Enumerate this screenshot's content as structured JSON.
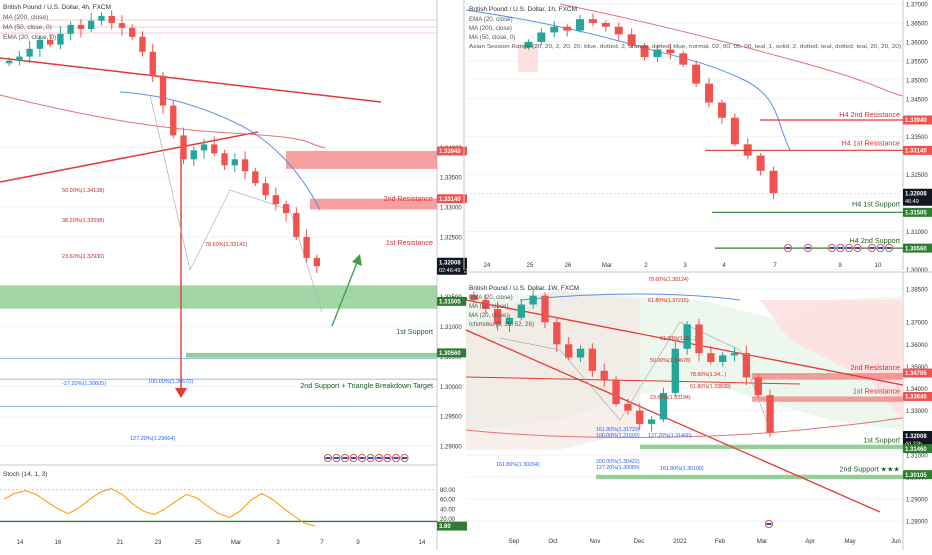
{
  "colors": {
    "bull": "#26a69a",
    "bear": "#ef5350",
    "resistance_line": "#e53935",
    "support_line": "#2e7d32",
    "support_zone": "#66bb6a",
    "resistance_zone": "#ef5350",
    "ma200": "#e57373",
    "ma50": "#5c8fe6",
    "ema20": "#ef6c00",
    "stoch": "#ff9800",
    "axis_text": "#333333",
    "price_tag": "#131722"
  },
  "panels": [
    {
      "id": "h4",
      "header": [
        "British Pound / U.S. Dollar, 4h, FXCM",
        "MA (200, close)",
        "MA (50, close, 0)",
        "EMA (20, close, 0)"
      ],
      "price_labels": [
        {
          "value": "1.33940",
          "style": "red"
        },
        {
          "value": "1.33140",
          "style": "red"
        },
        {
          "value": "1.32008",
          "style": "dark",
          "sub": "02:46:49"
        },
        {
          "value": "1.31505",
          "style": "green"
        },
        {
          "value": "1.30560",
          "style": "green"
        }
      ],
      "axis_ticks": [
        "1.34000",
        "1.33500",
        "1.33000",
        "1.32500",
        "1.31500",
        "1.31000",
        "1.30500",
        "1.30000",
        "1.29500",
        "1.29000"
      ],
      "time_ticks": [
        "14",
        "16",
        "21",
        "23",
        "25",
        "Mar",
        "3",
        "7",
        "9",
        "14"
      ],
      "zone_labels": [
        "2nd Resistance",
        "1st Resistance",
        "1st Support",
        "2nd Support + Triangle Breakdown Target"
      ],
      "fib_labels": [
        "50.00%(1.34138)",
        "38.20%(1.33598)",
        "78.60%(1.33141)",
        "23.60%(1.32930)",
        "-27.20%(1.30605)",
        "100.00%(1.30670)",
        "127.20%(1.29664)"
      ],
      "stoch": {
        "header": "Stoch (14, 1, 3)",
        "ticks": [
          "80.00",
          "60.00",
          "40.00",
          "20.00"
        ],
        "value": "3.80"
      }
    },
    {
      "id": "h1",
      "header": [
        "British Pound / U.S. Dollar, 1h, FXCM",
        "EMA (20, close)",
        "MA (200, close)",
        "MA (50, close, 0)",
        "Asian Session Range (20, 20, 2, 20, 20, blue, dotted, 2, orange, dotted, blue, normal, 02, 00, 05, 00, teal, 1, solid, 2, dotted, teal, dotted, teal, 20, 20, 20)"
      ],
      "price_labels": [
        {
          "value": "1.33940",
          "style": "red"
        },
        {
          "value": "1.33140",
          "style": "red"
        },
        {
          "value": "1.32008",
          "style": "dark",
          "sub": "46:49"
        },
        {
          "value": "1.31505",
          "style": "green"
        },
        {
          "value": "1.30560",
          "style": "green"
        }
      ],
      "axis_ticks": [
        "1.37000",
        "1.36500",
        "1.36000",
        "1.35500",
        "1.35000",
        "1.34500",
        "1.33500",
        "1.32500",
        "1.31000",
        "1.30000"
      ],
      "time_ticks": [
        "24",
        "25",
        "26",
        "Mar",
        "2",
        "3",
        "4",
        "7",
        "9",
        "10"
      ],
      "zone_labels": [
        "H4 2nd Resistance",
        "H4 1st Resistance",
        "H4 1st Support",
        "H4 2nd Support"
      ]
    },
    {
      "id": "w1",
      "header": [
        "British Pound / U.S. Dollar, 1W, FXCM",
        "EMA (20, close)",
        "MA (50, close)",
        "MA (20, close)",
        "Ichimoku (9, 26, 52, 26)"
      ],
      "price_labels": [
        {
          "value": "1.34705",
          "style": "red"
        },
        {
          "value": "1.33640",
          "style": "red"
        },
        {
          "value": "1.32008",
          "style": "dark",
          "sub": "4d 23h"
        },
        {
          "value": "1.31460",
          "style": "green"
        },
        {
          "value": "1.30105",
          "style": "green"
        }
      ],
      "axis_ticks": [
        "1.38500",
        "1.37000",
        "1.36000",
        "1.35000",
        "1.34000",
        "1.33000",
        "1.31000",
        "1.30000",
        "1.29000",
        "1.28000"
      ],
      "time_ticks": [
        "Sep",
        "Oct",
        "Nov",
        "Dec",
        "2022",
        "Feb",
        "Mar",
        "Apr",
        "May",
        "Jun"
      ],
      "zone_labels": [
        "2nd Resistance",
        "1st Resistance",
        "1st Support",
        "2nd Support ★★★"
      ],
      "fib_labels": [
        "78.60%(1.38124)",
        "61.80%(1.37215)",
        "61.80%(1.35...)",
        "50.00%(1.34678)",
        "78.60%(1.34...)",
        "61.80%(1.33839)",
        "23.60%(1.33194)",
        "161.80%(1.31729)",
        "100.00%(1.31600)",
        "127.20%(1.31400)",
        "200.00%(1.30422)",
        "127.20%(1.30089)",
        "161.80%(1.30294)",
        "161.80%(1.30100)"
      ]
    }
  ],
  "chart_data": [
    {
      "type": "candlestick",
      "title": "British Pound / U.S. Dollar, 4h, FXCM",
      "ylim": [
        1.288,
        1.364
      ],
      "last_price": 1.32008,
      "resistance_zones": [
        [
          1.3364,
          1.3394
        ],
        [
          1.3296,
          1.3314
        ]
      ],
      "support_zones": [
        [
          1.313,
          1.3169
        ],
        [
          1.3048,
          1.3056
        ]
      ],
      "close_path": [
        1.3545,
        1.3552,
        1.3565,
        1.358,
        1.3572,
        1.359,
        1.3605,
        1.3598,
        1.3612,
        1.362,
        1.3608,
        1.36,
        1.3585,
        1.356,
        1.352,
        1.347,
        1.342,
        1.338,
        1.3395,
        1.3405,
        1.339,
        1.337,
        1.338,
        1.336,
        1.334,
        1.332,
        1.3305,
        1.329,
        1.325,
        1.3215,
        1.3201
      ]
    },
    {
      "type": "candlestick",
      "title": "British Pound / U.S. Dollar, 1h, FXCM",
      "ylim": [
        1.303,
        1.37
      ],
      "last_price": 1.32008,
      "close_path": [
        1.36,
        1.3625,
        1.364,
        1.363,
        1.366,
        1.365,
        1.364,
        1.362,
        1.359,
        1.356,
        1.358,
        1.357,
        1.354,
        1.349,
        1.344,
        1.34,
        1.333,
        1.33,
        1.326,
        1.3201
      ]
    },
    {
      "type": "candlestick",
      "title": "British Pound / U.S. Dollar, 1W, FXCM",
      "ylim": [
        1.276,
        1.39
      ],
      "last_price": 1.32008,
      "resistance_zones": [
        [
          1.344,
          1.347
        ],
        [
          1.334,
          1.3364
        ]
      ],
      "support_zones": [
        [
          1.3126,
          1.3146
        ],
        [
          1.299,
          1.301
        ]
      ],
      "close_path": [
        1.38,
        1.376,
        1.369,
        1.372,
        1.378,
        1.382,
        1.37,
        1.36,
        1.354,
        1.358,
        1.348,
        1.344,
        1.333,
        1.33,
        1.324,
        1.326,
        1.338,
        1.358,
        1.369,
        1.356,
        1.352,
        1.355,
        1.356,
        1.345,
        1.337,
        1.3201
      ]
    },
    {
      "type": "line",
      "title": "Stoch (14, 1, 3)",
      "ylim": [
        0,
        100
      ],
      "levels": [
        20,
        80
      ],
      "values": [
        60,
        72,
        78,
        70,
        55,
        40,
        30,
        42,
        60,
        75,
        82,
        70,
        50,
        35,
        28,
        40,
        55,
        70,
        62,
        45,
        30,
        22,
        35,
        58,
        72,
        60,
        42,
        25,
        10,
        4
      ]
    }
  ]
}
